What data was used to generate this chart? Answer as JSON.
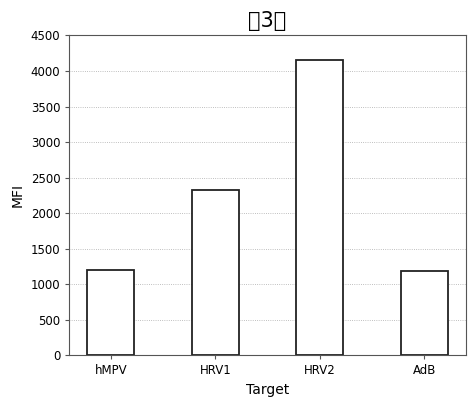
{
  "title": "第3组",
  "categories": [
    "hMPV",
    "HRV1",
    "HRV2",
    "AdB"
  ],
  "values": [
    1200,
    2330,
    4150,
    1180
  ],
  "xlabel": "Target",
  "ylabel": "MFI",
  "ylim": [
    0,
    4500
  ],
  "yticks": [
    0,
    500,
    1000,
    1500,
    2000,
    2500,
    3000,
    3500,
    4000,
    4500
  ],
  "bar_color": "#ffffff",
  "bar_edgecolor": "#222222",
  "background_color": "#ffffff",
  "grid_color": "#aaaaaa",
  "title_fontsize": 15,
  "axis_label_fontsize": 10,
  "tick_fontsize": 8.5,
  "bar_width": 0.45
}
